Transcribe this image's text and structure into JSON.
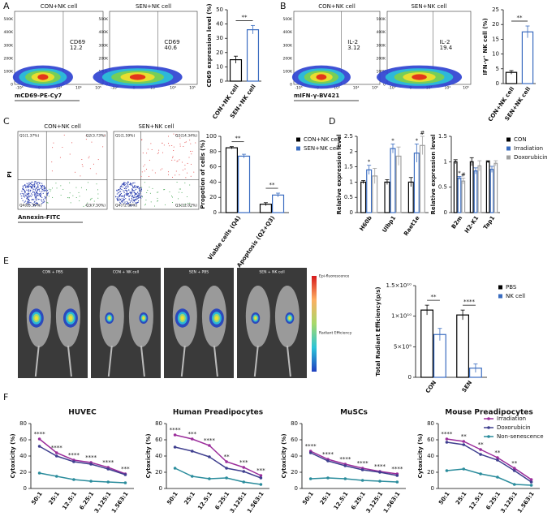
{
  "panel_labels": [
    "A",
    "B",
    "C",
    "D",
    "E",
    "F"
  ],
  "flow_cytometry": {
    "y_ticks": [
      "0",
      "100K",
      "200K",
      "300K",
      "400K",
      "500K"
    ],
    "x_ticks": [
      "-10³",
      "0",
      "10³",
      "10⁴",
      "10⁵"
    ],
    "A": {
      "x_label": "mCD69-PE-Cy7",
      "plots": [
        {
          "title": "CON+NK cell",
          "gate": "CD69",
          "percent": 12.2
        },
        {
          "title": "SEN+NK cell",
          "gate": "CD69",
          "percent": 40.6
        }
      ]
    },
    "B": {
      "x_label": "mIFN-γ-BV421",
      "plots": [
        {
          "title": "CON+NK cell",
          "gate": "IL-2",
          "percent": 3.12
        },
        {
          "title": "SEN+NK cell",
          "gate": "IL-2",
          "percent": 19.4
        }
      ]
    },
    "C": {
      "x_label": "Annexin-FITC",
      "y_label": "PI",
      "plots": [
        {
          "title": "CON+NK cell",
          "quadrants": [
            "Q1(1.37%)",
            "Q2(3.73%)",
            "Q4(85.39%)",
            "Q3(7.50%)"
          ]
        },
        {
          "title": "SEN+NK cell",
          "quadrants": [
            "Q1(1.59%)",
            "Q2(14.34%)",
            "Q4(72.06%)",
            "Q3(12.02%)"
          ]
        }
      ]
    }
  },
  "imaging": {
    "groups": [
      "CON + PBS",
      "CON + NK cell",
      "SEN + PBS",
      "SEN + NK cell"
    ],
    "scale_title": "Epi-fluorescence",
    "scale_label": "Radiant Efficiency"
  },
  "chart_data": [
    {
      "type": "bar",
      "y_label": "CD69 expression level (%)",
      "categories": [
        "CON+NK cell",
        "SEN+NK cell"
      ],
      "values": [
        15,
        36
      ],
      "errors": [
        2.5,
        3
      ],
      "colors": [
        "#000000",
        "#3a6cc0"
      ],
      "ylim": [
        0,
        50
      ],
      "yticks": [
        0,
        10,
        20,
        30,
        40,
        50
      ],
      "significance": "**"
    },
    {
      "type": "bar",
      "y_label": "IFN-γ⁺ NK cell (%)",
      "categories": [
        "CON+NK cell",
        "SEN+NK cell"
      ],
      "values": [
        3.8,
        17.5
      ],
      "errors": [
        0.6,
        2
      ],
      "colors": [
        "#000000",
        "#3a6cc0"
      ],
      "ylim": [
        0,
        25
      ],
      "yticks": [
        0,
        5,
        10,
        15,
        20,
        25
      ],
      "significance": "**"
    },
    {
      "type": "bar",
      "y_label": "Propotion of cells (%)",
      "categories": [
        "Viable cells (Q4)",
        "Apoptosis (Q2+Q3)"
      ],
      "series": [
        {
          "name": "CON+NK cell",
          "color": "#000000",
          "values": [
            85,
            11
          ],
          "errors": [
            1.5,
            2
          ]
        },
        {
          "name": "SEN+NK cell",
          "color": "#3a6cc0",
          "values": [
            74,
            23
          ],
          "errors": [
            2.5,
            2.5
          ]
        }
      ],
      "ylim": [
        0,
        100
      ],
      "yticks": [
        0,
        20,
        40,
        60,
        80,
        100
      ],
      "significance": [
        "**",
        "**"
      ]
    },
    {
      "type": "bar",
      "y_label": "Relative expression level",
      "categories": [
        "H60b",
        "Ulbp1",
        "Raet1e"
      ],
      "series": [
        {
          "color": "#000000",
          "values": [
            1,
            1,
            1
          ],
          "errors": [
            0.05,
            0.08,
            0.15
          ]
        },
        {
          "color": "#3a6cc0",
          "values": [
            1.4,
            2.1,
            1.95
          ],
          "errors": [
            0.15,
            0.15,
            0.3
          ],
          "annotations": [
            "*",
            "*",
            "*"
          ]
        },
        {
          "color": "#a0a0a0",
          "values": [
            1.2,
            1.85,
            2.2
          ],
          "errors": [
            0.25,
            0.3,
            0.3
          ],
          "annotations": [
            null,
            null,
            "#"
          ]
        }
      ],
      "ylim": [
        0,
        2.5
      ],
      "yticks": [
        0,
        0.5,
        1,
        1.5,
        2,
        2.5
      ]
    },
    {
      "type": "bar",
      "y_label": "Relative expression level",
      "categories": [
        "B2m",
        "H2-K1",
        "Tap1"
      ],
      "series": [
        {
          "name": "CON",
          "color": "#000000",
          "values": [
            1,
            1,
            1
          ],
          "errors": [
            0.04,
            0.08,
            0.02
          ]
        },
        {
          "name": "Irradiation",
          "color": "#3a6cc0",
          "values": [
            0.68,
            0.82,
            0.85
          ],
          "errors": [
            0.03,
            0.06,
            0.06
          ],
          "annotations": [
            "*",
            null,
            null
          ]
        },
        {
          "name": "Doxorubicin",
          "color": "#a0a0a0",
          "values": [
            0.62,
            0.92,
            0.97
          ],
          "errors": [
            0.06,
            0.1,
            0.05
          ],
          "annotations": [
            "#",
            null,
            null
          ]
        }
      ],
      "ylim": [
        0,
        1.5
      ],
      "yticks": [
        0,
        0.5,
        1,
        1.5
      ]
    },
    {
      "type": "bar",
      "y_label": "Total Radiant Efficiency(p/s)",
      "categories": [
        "CON",
        "SEN"
      ],
      "series": [
        {
          "name": "PBS",
          "color": "#000000",
          "values": [
            11000000000,
            10200000000
          ],
          "errors": [
            800000000,
            800000000
          ]
        },
        {
          "name": "NK cell",
          "color": "#3a6cc0",
          "values": [
            7000000000,
            1500000000
          ],
          "errors": [
            1000000000,
            700000000
          ]
        }
      ],
      "ylim": [
        0,
        15000000000
      ],
      "yticks": [
        0,
        {
          "value": 5000000000,
          "label": "5×10⁹"
        },
        {
          "value": 10000000000,
          "label": "1×10¹⁰"
        },
        {
          "value": 15000000000,
          "label": "1.5×10¹⁰"
        }
      ],
      "significance": [
        "**",
        "****"
      ]
    },
    {
      "type": "line",
      "title": "HUVEC",
      "y_label": "Cytoxicity (%)",
      "categories": [
        "50:1",
        "25:1",
        "12.5:1",
        "6.25:1",
        "3.125:1",
        "1.563:1"
      ],
      "series": [
        {
          "color": "#9b2d9b",
          "values": [
            61,
            44,
            35,
            32,
            26,
            18
          ]
        },
        {
          "color": "#3f3f8f",
          "values": [
            52,
            40,
            33,
            30,
            24,
            17
          ]
        },
        {
          "color": "#2a8c9c",
          "values": [
            19,
            15,
            11,
            9,
            8,
            7
          ]
        }
      ],
      "ylim": [
        0,
        80
      ],
      "yticks": [
        0,
        20,
        40,
        60,
        80
      ],
      "significance": [
        "****",
        "****",
        "****",
        "****",
        "****",
        "***"
      ]
    },
    {
      "type": "line",
      "title": "Human Preadipocytes",
      "y_label": "Cytoxicity (%)",
      "categories": [
        "50:1",
        "25:1",
        "12.5:1",
        "6.25:1",
        "3.125:1",
        "1.563:1"
      ],
      "series": [
        {
          "color": "#9b2d9b",
          "values": [
            66,
            61,
            53,
            33,
            26,
            16
          ]
        },
        {
          "color": "#3f3f8f",
          "values": [
            51,
            46,
            39,
            25,
            21,
            13
          ]
        },
        {
          "color": "#2a8c9c",
          "values": [
            25,
            15,
            12,
            13,
            8,
            5
          ]
        }
      ],
      "ylim": [
        0,
        80
      ],
      "yticks": [
        0,
        20,
        40,
        60,
        80
      ],
      "significance": [
        "****",
        "***",
        "****",
        "**",
        "***",
        "***"
      ]
    },
    {
      "type": "line",
      "title": "MuSCs",
      "y_label": "Cytoxicity (%)",
      "categories": [
        "50:1",
        "25:1",
        "12.5:1",
        "6.25:1",
        "3.125:1",
        "1.563:1"
      ],
      "series": [
        {
          "color": "#9b2d9b",
          "values": [
            46,
            36,
            30,
            25,
            21,
            18
          ]
        },
        {
          "color": "#3f3f8f",
          "values": [
            44,
            34,
            28,
            23,
            20,
            16
          ]
        },
        {
          "color": "#2a8c9c",
          "values": [
            12,
            13,
            12,
            10,
            9,
            8
          ]
        }
      ],
      "ylim": [
        0,
        80
      ],
      "yticks": [
        0,
        20,
        40,
        60,
        80
      ],
      "significance": [
        "****",
        "****",
        "****",
        "****",
        "****",
        "****"
      ]
    },
    {
      "type": "line",
      "title": "Mouse Preadipocytes",
      "y_label": "Cytoxicity (%)",
      "categories": [
        "50:1",
        "25:1",
        "12.5:1",
        "6.25:1",
        "3.125:1",
        "1.563:1"
      ],
      "series": [
        {
          "name": "Irradiation",
          "color": "#9b2d9b",
          "values": [
            61,
            58,
            48,
            38,
            25,
            11
          ]
        },
        {
          "name": "Doxorubicin",
          "color": "#3f3f8f",
          "values": [
            57,
            54,
            42,
            35,
            22,
            8
          ]
        },
        {
          "name": "Non-senescence",
          "color": "#2a8c9c",
          "values": [
            22,
            24,
            18,
            14,
            5,
            4
          ]
        }
      ],
      "ylim": [
        0,
        80
      ],
      "yticks": [
        0,
        20,
        40,
        60,
        80
      ],
      "significance": [
        "****",
        "**",
        "**",
        "**",
        "**",
        null
      ]
    }
  ]
}
